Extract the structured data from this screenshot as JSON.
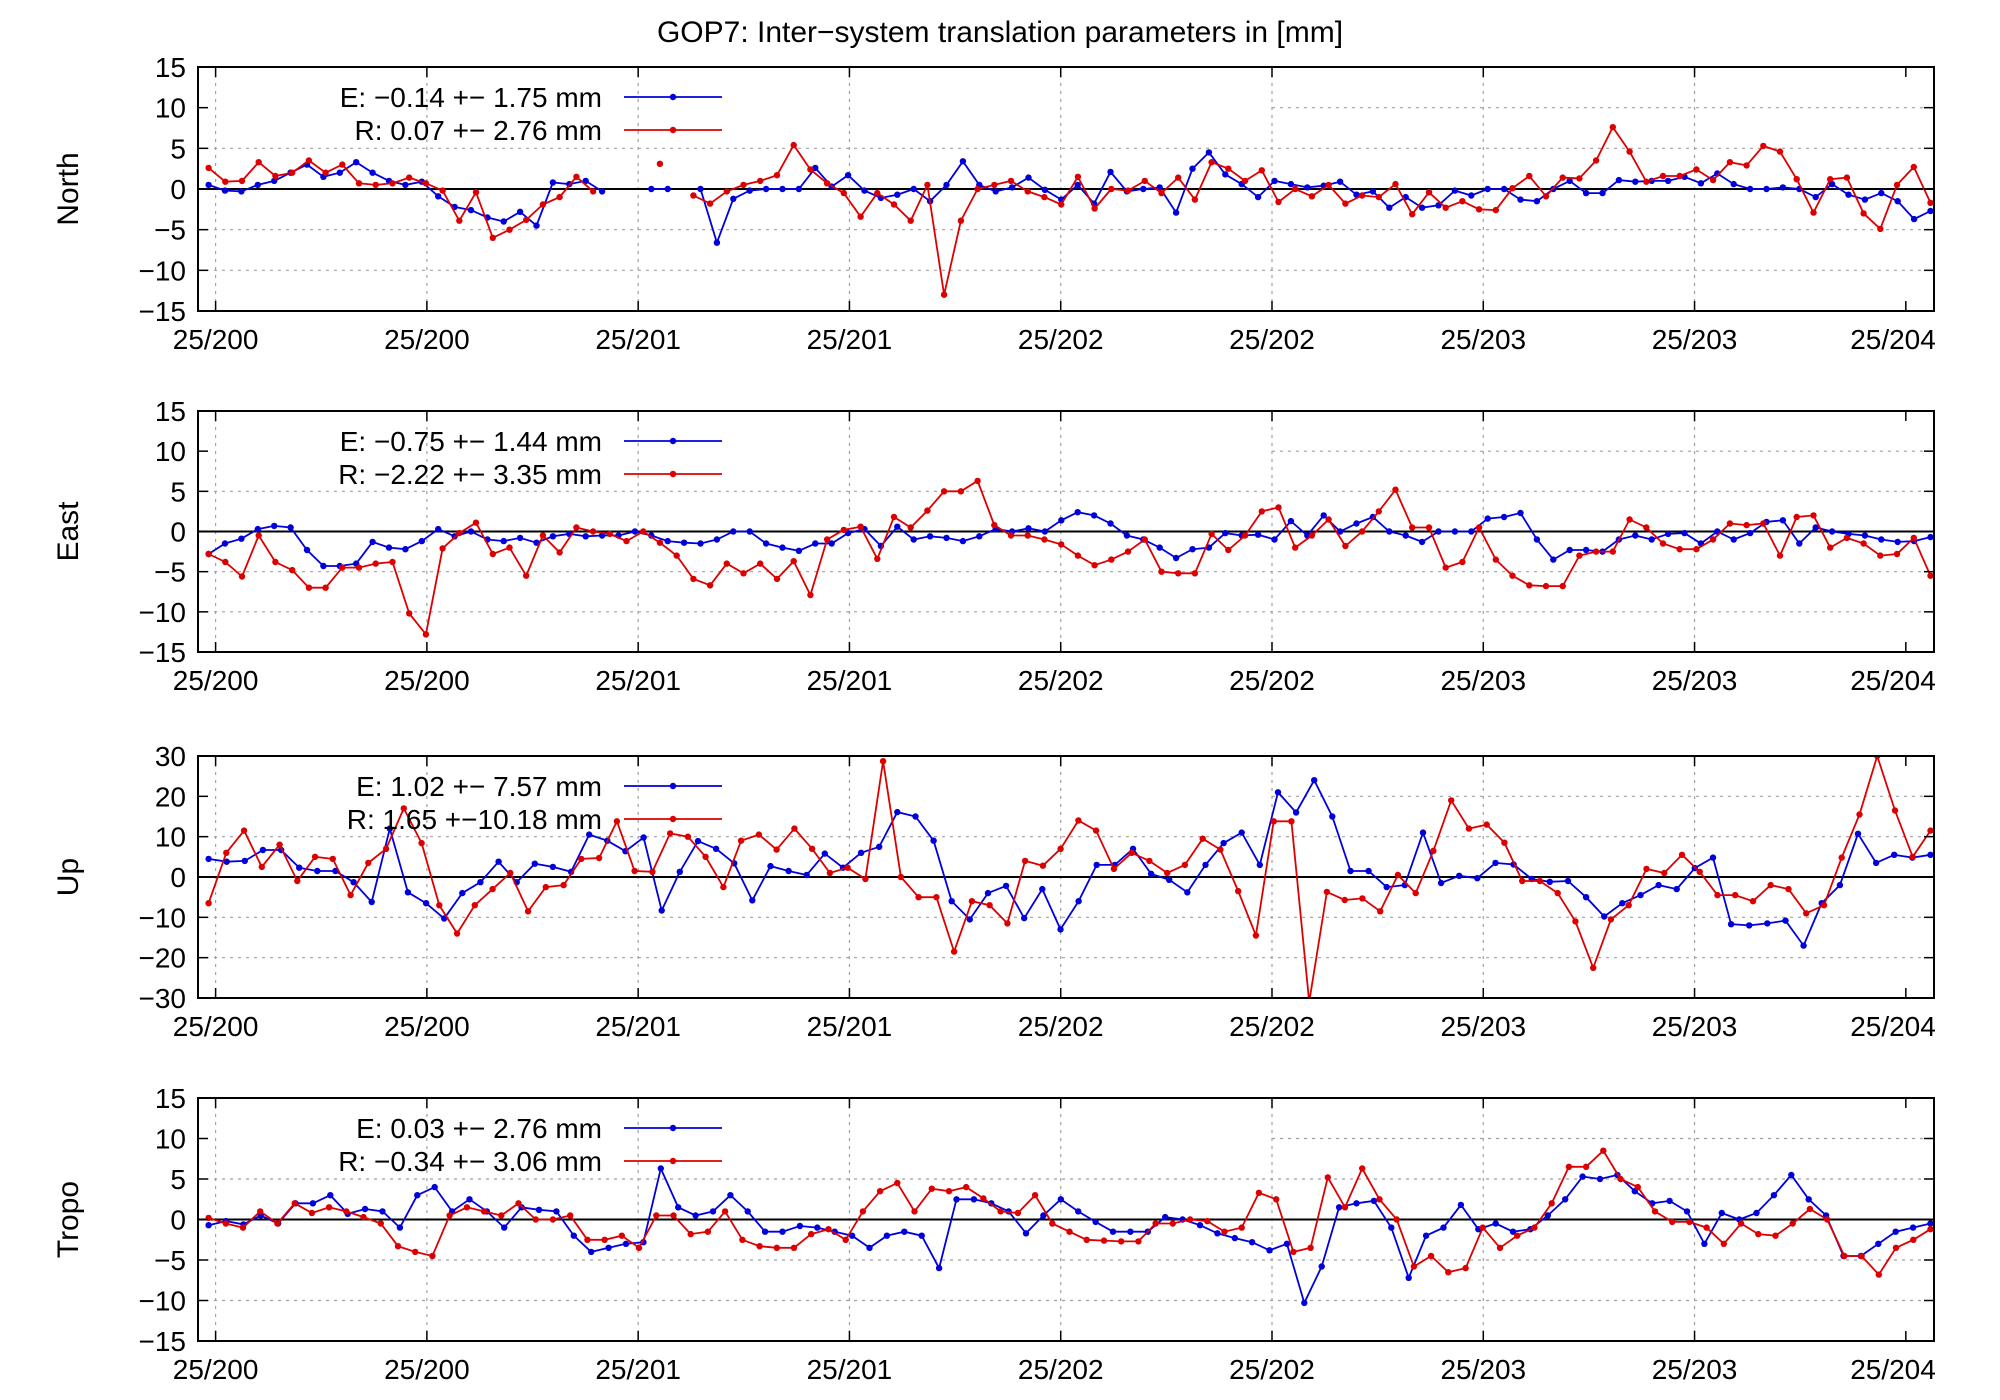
{
  "chart_data": {
    "type": "line",
    "title": "GOP7: Inter−system translation parameters in [mm]",
    "x_tick_labels": [
      "25/200",
      "25/200",
      "25/201",
      "25/201",
      "25/202",
      "25/202",
      "25/203",
      "25/203",
      "25/204"
    ],
    "x_ticks": [
      2000,
      2006,
      2012,
      2018,
      2024,
      2030,
      2036,
      2042,
      2048
    ],
    "xlim": [
      1999.5,
      2048.8
    ],
    "colors": {
      "E": "#0000dd",
      "R": "#dd0000"
    },
    "panels": [
      {
        "ylabel": "North",
        "ylim": [
          -15,
          15
        ],
        "yticks": [
          -15,
          -10,
          -5,
          0,
          5,
          10,
          15
        ],
        "series": [
          {
            "name": "E",
            "legend": "E:  −0.14 +− 1.75 mm",
            "color": "#0000dd",
            "values": [
              0.5,
              -0.2,
              -0.3,
              0.5,
              1.0,
              2.0,
              3.0,
              1.5,
              2.0,
              3.3,
              2.0,
              1.0,
              0.5,
              0.9,
              -0.9,
              -2.2,
              -2.6,
              -3.5,
              -4.0,
              -2.8,
              -4.5,
              0.8,
              0.6,
              1.0,
              -0.3,
              null,
              null,
              0.0,
              0.0,
              null,
              0.0,
              -6.6,
              -1.2,
              -0.2,
              0.0,
              0.0,
              0.0,
              2.6,
              0.3,
              1.7,
              -0.2,
              -1.1,
              -0.7,
              0.0,
              -1.5,
              0.5,
              3.4,
              0.5,
              -0.3,
              0.2,
              1.4,
              -0.1,
              -1.3,
              0.5,
              -1.8,
              2.1,
              -0.3,
              0.0,
              0.2,
              -2.9,
              2.5,
              4.5,
              1.8,
              0.6,
              -1.0,
              1.0,
              0.6,
              0.2,
              0.4,
              0.9,
              -0.7,
              -0.3,
              -2.3,
              -1.0,
              -2.3,
              -2.0,
              -0.2,
              -0.8,
              0.0,
              0.0,
              -1.3,
              -1.5,
              0.0,
              1.0,
              -0.5,
              -0.5,
              1.1,
              0.9,
              1.0,
              1.0,
              1.5,
              0.7,
              1.9,
              0.6,
              0.0,
              0.0,
              0.2,
              0.0,
              -1.0,
              0.6,
              -0.7,
              -1.3,
              -0.5,
              -1.5,
              -3.7,
              -2.7
            ]
          },
          {
            "name": "R",
            "legend": "R:   0.07 +− 2.76 mm",
            "color": "#dd0000",
            "values": [
              2.6,
              0.9,
              1.0,
              3.3,
              1.6,
              2.0,
              3.5,
              2.0,
              3.0,
              0.7,
              0.5,
              0.7,
              1.4,
              0.7,
              -0.2,
              -3.9,
              -0.4,
              -6.0,
              -5.0,
              -3.8,
              -1.9,
              -1.0,
              1.5,
              -0.3,
              null,
              null,
              null,
              3.1,
              null,
              -0.8,
              -1.8,
              -0.3,
              0.5,
              1.0,
              1.7,
              5.4,
              2.4,
              0.7,
              -0.5,
              -3.4,
              -0.5,
              -1.9,
              -3.9,
              0.5,
              -13.0,
              -3.9,
              0.0,
              0.5,
              1.0,
              -0.3,
              -1.0,
              -1.9,
              1.5,
              -2.4,
              0.0,
              -0.2,
              1.0,
              -0.5,
              1.4,
              -1.3,
              3.3,
              2.5,
              1.0,
              2.3,
              -1.6,
              0.0,
              -0.9,
              0.5,
              -1.8,
              -0.8,
              -1.0,
              0.6,
              -3.1,
              -0.4,
              -2.3,
              -1.5,
              -2.5,
              -2.6,
              0.1,
              1.6,
              -0.9,
              1.4,
              1.3,
              3.5,
              7.6,
              4.6,
              0.9,
              1.6,
              1.6,
              2.4,
              1.1,
              3.3,
              2.9,
              5.3,
              4.6,
              1.2,
              -2.9,
              1.2,
              1.4,
              -3.0,
              -4.9,
              0.5,
              2.7,
              -1.7
            ]
          }
        ]
      },
      {
        "ylabel": "East",
        "ylim": [
          -15,
          15
        ],
        "yticks": [
          -15,
          -10,
          -5,
          0,
          5,
          10,
          15
        ],
        "series": [
          {
            "name": "E",
            "legend": "E:  −0.75 +− 1.44 mm",
            "color": "#0000dd",
            "values": [
              -2.8,
              -1.5,
              -0.9,
              0.3,
              0.7,
              0.5,
              -2.3,
              -4.3,
              -4.3,
              -4.0,
              -1.3,
              -2.0,
              -2.2,
              -1.2,
              0.3,
              -0.6,
              0.0,
              -1.0,
              -1.2,
              -0.8,
              -1.4,
              -0.6,
              -0.3,
              -0.6,
              -0.5,
              -0.5,
              0.0,
              -0.5,
              -1.2,
              -1.4,
              -1.5,
              -1.0,
              0.0,
              0.0,
              -1.5,
              -2.0,
              -2.4,
              -1.5,
              -1.5,
              -0.2,
              0.3,
              -1.8,
              0.6,
              -1.0,
              -0.6,
              -0.8,
              -1.2,
              -0.6,
              0.3,
              0.0,
              0.4,
              0.0,
              1.4,
              2.4,
              2.0,
              1.0,
              -0.5,
              -1.0,
              -2.0,
              -3.3,
              -2.2,
              -2.0,
              -0.2,
              -0.5,
              -0.4,
              -1.0,
              1.3,
              -0.5,
              2.0,
              0.0,
              1.0,
              1.8,
              0.0,
              -0.5,
              -1.3,
              0.0,
              0.0,
              0.0,
              1.6,
              1.8,
              2.3,
              -1.0,
              -3.5,
              -2.3,
              -2.3,
              -2.5,
              -1.0,
              -0.5,
              -1.0,
              -0.3,
              -0.2,
              -1.5,
              0.0,
              -1.0,
              -0.2,
              1.2,
              1.4,
              -1.5,
              0.5,
              0.0,
              -0.3,
              -0.5,
              -1.0,
              -1.3,
              -1.2,
              -0.7
            ]
          },
          {
            "name": "R",
            "legend": "R:  −2.22 +− 3.35 mm",
            "color": "#dd0000",
            "values": [
              -2.8,
              -3.8,
              -5.6,
              -0.5,
              -3.8,
              -4.8,
              -7.0,
              -7.0,
              -4.5,
              -4.5,
              -4.0,
              -3.8,
              -10.2,
              -12.8,
              -2.1,
              -0.2,
              1.1,
              -2.8,
              -2.0,
              -5.5,
              -0.5,
              -2.6,
              0.5,
              0.0,
              -0.3,
              -1.2,
              0.0,
              -1.4,
              -3.0,
              -5.9,
              -6.7,
              -4.0,
              -5.2,
              -4.0,
              -5.9,
              -3.7,
              -7.9,
              -1.0,
              0.2,
              0.6,
              -3.4,
              1.8,
              0.5,
              2.6,
              5.0,
              5.0,
              6.3,
              0.8,
              -0.5,
              -0.5,
              -1.0,
              -1.6,
              -3.0,
              -4.2,
              -3.5,
              -2.5,
              -1.0,
              -5.0,
              -5.2,
              -5.2,
              -0.3,
              -2.3,
              -0.5,
              2.5,
              3.0,
              -2.0,
              -0.5,
              1.5,
              -1.8,
              0.0,
              2.5,
              5.2,
              0.5,
              0.5,
              -4.5,
              -3.8,
              0.5,
              -3.5,
              -5.5,
              -6.7,
              -6.8,
              -6.8,
              -3.0,
              -2.5,
              -2.5,
              1.5,
              0.5,
              -1.5,
              -2.2,
              -2.2,
              -1.0,
              1.0,
              0.8,
              1.0,
              -3.0,
              1.8,
              2.0,
              -2.0,
              -0.8,
              -1.5,
              -3.0,
              -2.8,
              -0.8,
              -5.5
            ]
          }
        ]
      },
      {
        "ylabel": "Up",
        "ylim": [
          -30,
          30
        ],
        "yticks": [
          -30,
          -20,
          -10,
          0,
          10,
          20,
          30
        ],
        "series": [
          {
            "name": "E",
            "legend": "E:   1.02 +− 7.57 mm",
            "color": "#0000dd",
            "values": [
              4.5,
              3.8,
              4.0,
              6.7,
              6.7,
              2.3,
              1.5,
              1.5,
              -1.3,
              -6.2,
              12.0,
              -3.8,
              -6.5,
              -10.3,
              -4.0,
              -1.3,
              3.8,
              -1.3,
              3.3,
              2.5,
              1.3,
              10.5,
              9.0,
              6.4,
              9.8,
              -8.3,
              1.3,
              8.9,
              7.0,
              3.4,
              -5.8,
              2.7,
              1.5,
              0.5,
              5.8,
              2.3,
              6.0,
              7.5,
              16.1,
              15.0,
              9.0,
              -6.0,
              -10.5,
              -4.0,
              -2.2,
              -10.2,
              -3.0,
              -13.0,
              -6.0,
              3.0,
              3.0,
              7.0,
              0.8,
              -0.7,
              -3.8,
              3.0,
              8.4,
              11.0,
              3.0,
              21.0,
              16.0,
              24.0,
              15.0,
              1.5,
              1.5,
              -2.5,
              -2.0,
              11.0,
              -1.5,
              0.3,
              -0.3,
              3.5,
              3.1,
              -0.5,
              -1.2,
              -1.0,
              -5.0,
              -9.8,
              -6.5,
              -4.5,
              -2.0,
              -3.0,
              2.2,
              4.8,
              -11.7,
              -12.0,
              -11.5,
              -10.8,
              -17.0,
              -6.5,
              -2.0,
              10.7,
              3.5,
              5.5,
              4.8,
              5.5
            ]
          },
          {
            "name": "R",
            "legend": "R:   1.65 +−10.18 mm",
            "color": "#dd0000",
            "values": [
              -6.5,
              6.0,
              11.5,
              2.5,
              8.0,
              -1.0,
              5.0,
              4.5,
              -4.5,
              3.5,
              7.0,
              17.0,
              8.4,
              -7.0,
              -14.0,
              -7.0,
              -3.0,
              1.0,
              -8.5,
              -2.5,
              -2.0,
              4.5,
              4.7,
              13.8,
              1.5,
              1.3,
              10.8,
              10.0,
              5.0,
              -2.5,
              9.0,
              10.5,
              6.8,
              12.0,
              7.0,
              1.0,
              2.3,
              -0.5,
              28.7,
              0.0,
              -5.0,
              -5.0,
              -18.5,
              -6.0,
              -7.0,
              -11.5,
              4.0,
              2.8,
              7.0,
              14.0,
              11.5,
              2.0,
              6.0,
              4.0,
              1.0,
              3.0,
              9.5,
              6.8,
              -3.5,
              -14.5,
              13.8,
              13.8,
              -31.0,
              -3.7,
              -5.7,
              -5.3,
              -8.5,
              0.5,
              -4.0,
              6.5,
              19.0,
              12.0,
              13.0,
              8.5,
              -1.0,
              -1.0,
              -4.0,
              -11.0,
              -22.5,
              -10.5,
              -7.0,
              2.0,
              1.0,
              5.5,
              1.3,
              -4.5,
              -4.5,
              -6.0,
              -2.0,
              -3.0,
              -9.0,
              -7.0,
              4.8,
              15.5,
              30.0,
              16.5,
              5.0,
              11.5
            ]
          }
        ]
      },
      {
        "ylabel": "Tropo",
        "ylim": [
          -15,
          15
        ],
        "yticks": [
          -15,
          -10,
          -5,
          0,
          5,
          10,
          15
        ],
        "series": [
          {
            "name": "E",
            "legend": "E:   0.03 +− 2.76 mm",
            "color": "#0000dd",
            "values": [
              -0.7,
              -0.2,
              -0.6,
              0.5,
              -0.5,
              2.0,
              2.0,
              3.0,
              0.7,
              1.3,
              1.0,
              -1.0,
              3.0,
              4.0,
              1.0,
              2.5,
              1.0,
              -1.0,
              1.5,
              1.2,
              1.0,
              -2.0,
              -4.0,
              -3.5,
              -3.0,
              -2.8,
              6.3,
              1.5,
              0.5,
              1.0,
              3.0,
              1.0,
              -1.5,
              -1.5,
              -0.8,
              -1.0,
              -1.5,
              -2.0,
              -3.5,
              -2.0,
              -1.5,
              -2.0,
              -6.0,
              2.5,
              2.5,
              2.0,
              1.0,
              -1.7,
              0.5,
              2.5,
              1.0,
              -0.3,
              -1.5,
              -1.5,
              -1.5,
              0.3,
              0.0,
              -0.7,
              -1.7,
              -2.3,
              -2.8,
              -3.8,
              -3.0,
              -10.3,
              -5.8,
              1.5,
              2.0,
              2.3,
              -1.0,
              -7.2,
              -2.0,
              -1.0,
              1.8,
              -1.2,
              -0.5,
              -1.5,
              -1.2,
              0.5,
              2.5,
              5.3,
              5.0,
              5.5,
              3.5,
              2.0,
              2.3,
              1.0,
              -3.0,
              0.8,
              0.0,
              0.8,
              3.0,
              5.5,
              2.5,
              0.5,
              -4.5,
              -4.5,
              -3.0,
              -1.5,
              -1.0,
              -0.5
            ]
          },
          {
            "name": "R",
            "legend": "R:  −0.34 +− 3.06 mm",
            "color": "#dd0000",
            "values": [
              0.2,
              -0.5,
              -1.0,
              1.0,
              -0.5,
              2.0,
              0.8,
              1.5,
              1.0,
              0.3,
              -0.5,
              -3.3,
              -4.0,
              -4.5,
              0.5,
              1.5,
              1.0,
              0.5,
              2.0,
              0.0,
              0.0,
              0.5,
              -2.5,
              -2.5,
              -2.0,
              -3.5,
              0.5,
              0.5,
              -1.8,
              -1.5,
              1.0,
              -2.5,
              -3.3,
              -3.5,
              -3.5,
              -1.8,
              -1.2,
              -2.5,
              1.0,
              3.5,
              4.5,
              1.0,
              3.8,
              3.5,
              4.0,
              2.6,
              1.0,
              0.8,
              3.0,
              -0.5,
              -1.5,
              -2.5,
              -2.6,
              -2.7,
              -2.7,
              -0.5,
              -0.5,
              0.0,
              -0.2,
              -1.5,
              -1.0,
              3.3,
              2.5,
              -4.0,
              -3.5,
              5.2,
              1.5,
              6.3,
              2.5,
              0.0,
              -5.8,
              -4.5,
              -6.5,
              -6.0,
              -1.0,
              -3.5,
              -2.0,
              -1.0,
              2.0,
              6.5,
              6.5,
              8.5,
              5.0,
              4.0,
              1.0,
              -0.3,
              -0.3,
              -1.0,
              -3.0,
              -0.5,
              -1.8,
              -2.0,
              -0.5,
              1.3,
              0.0,
              -4.5,
              -4.5,
              -6.8,
              -3.5,
              -2.5,
              -1.2
            ]
          }
        ]
      }
    ]
  }
}
